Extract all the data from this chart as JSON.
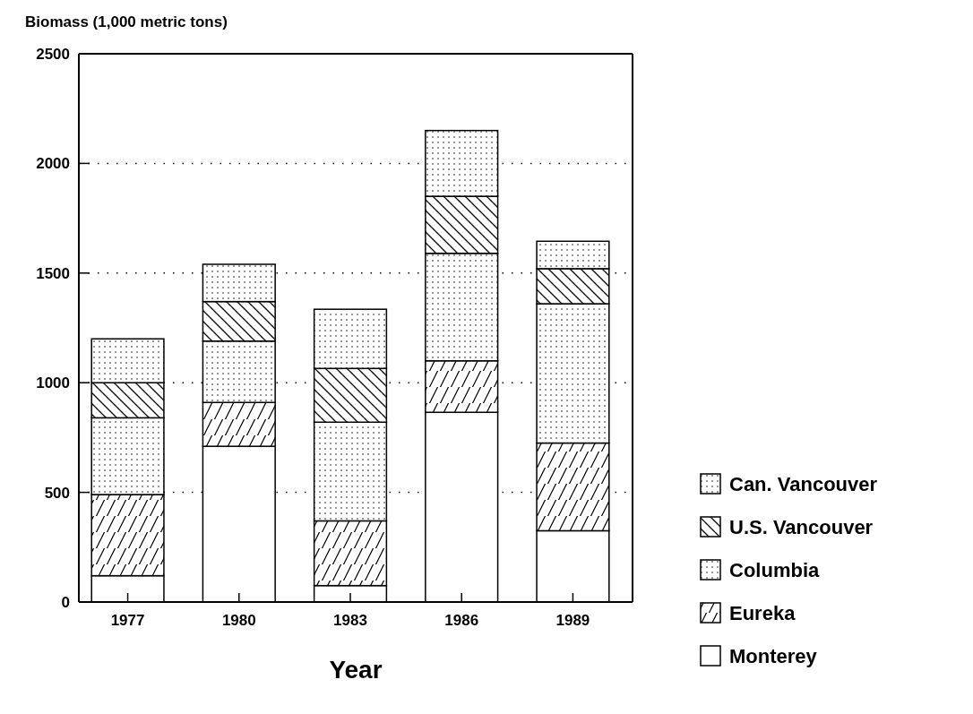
{
  "chart_data": {
    "type": "bar",
    "stacked": true,
    "ylabel": "Biomass (1,000 metric tons)",
    "xlabel": "Year",
    "categories": [
      "1977",
      "1980",
      "1983",
      "1986",
      "1989"
    ],
    "series": [
      {
        "name": "Monterey",
        "color": "#ffffff",
        "values": [
          120,
          710,
          75,
          865,
          325
        ]
      },
      {
        "name": "Eureka",
        "color": "#000000",
        "values": [
          370,
          200,
          295,
          235,
          400
        ]
      },
      {
        "name": "Columbia",
        "color": "#000000",
        "values": [
          350,
          280,
          450,
          490,
          635
        ]
      },
      {
        "name": "U.S. Vancouver",
        "color": "#000000",
        "values": [
          160,
          180,
          245,
          260,
          160
        ]
      },
      {
        "name": "Can. Vancouver",
        "color": "#000000",
        "values": [
          200,
          170,
          270,
          300,
          125
        ]
      }
    ],
    "ylim": [
      0,
      2500
    ],
    "yticks": [
      0,
      500,
      1000,
      1500,
      2000,
      2500
    ],
    "grid": "y",
    "legend": "right"
  }
}
